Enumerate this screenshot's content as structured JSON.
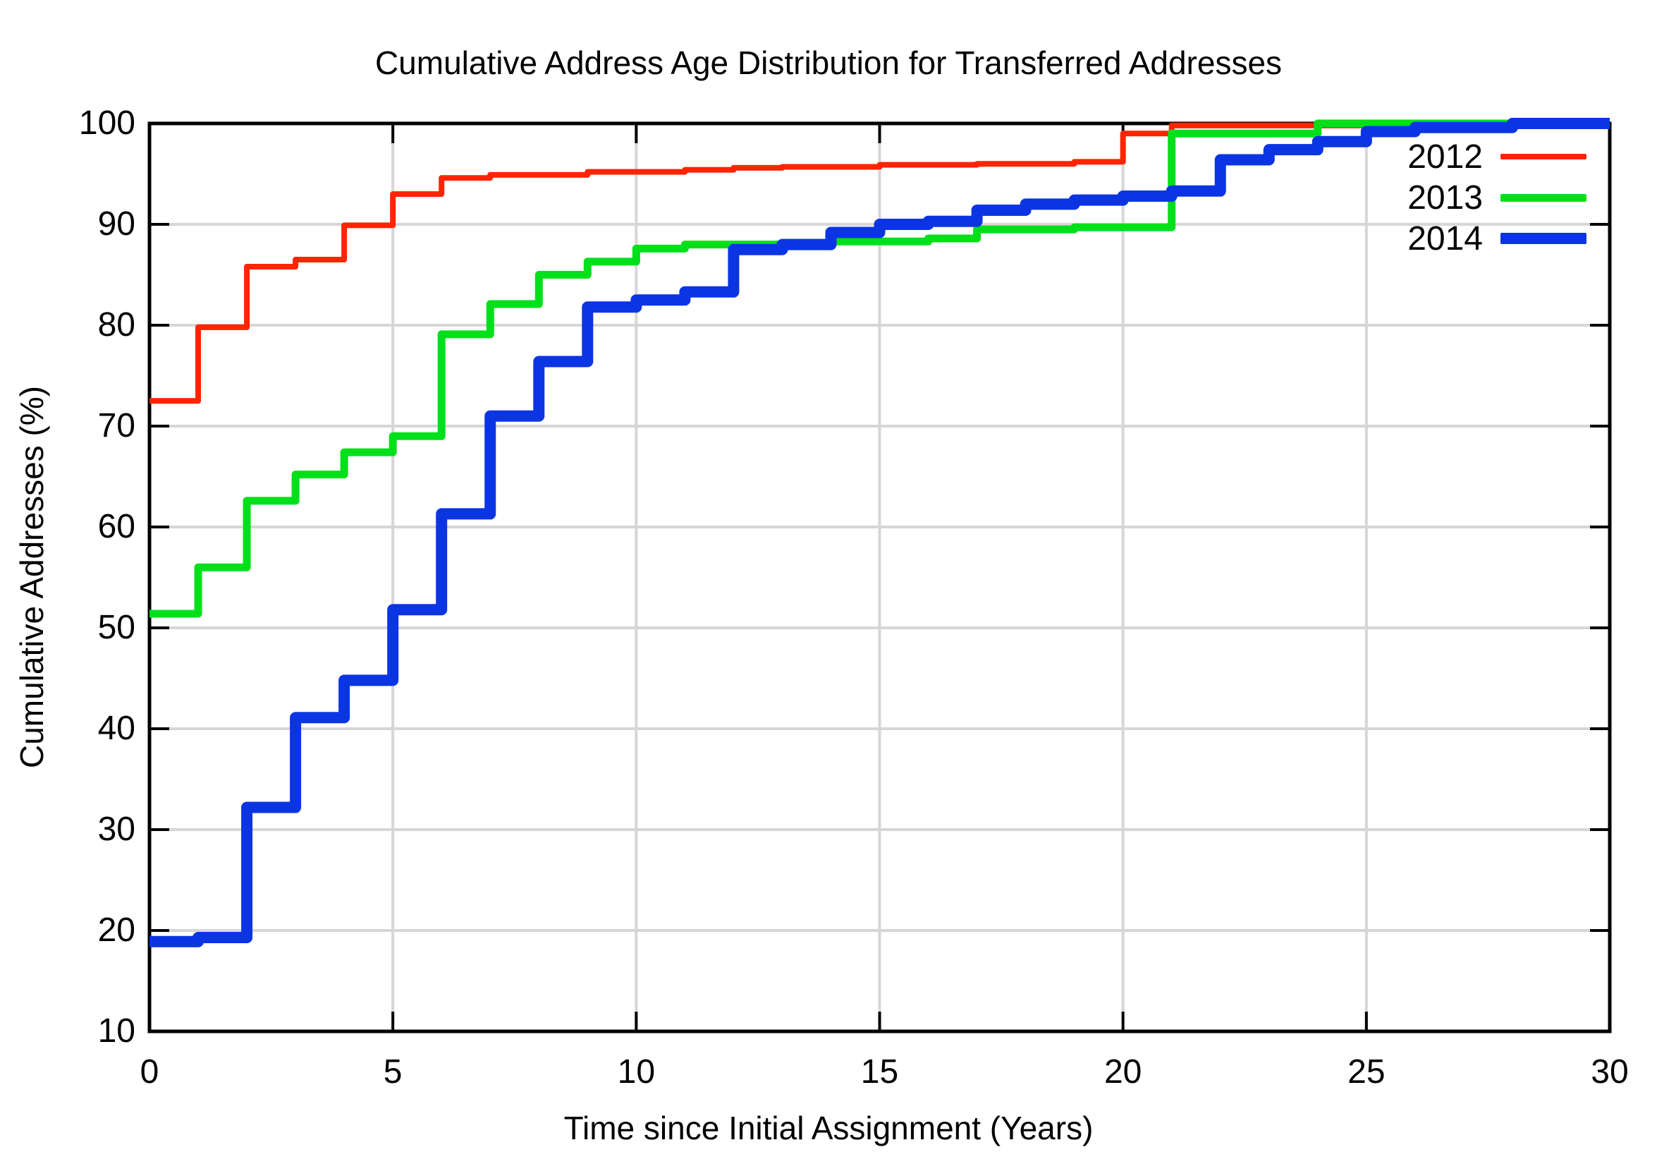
{
  "chart_data": {
    "type": "line",
    "subtype": "step-cdf",
    "title": "Cumulative Address Age Distribution for Transferred Addresses",
    "xlabel": "Time since Initial Assignment (Years)",
    "ylabel": "Cumulative Addresses (%)",
    "xlim": [
      0,
      30
    ],
    "ylim": [
      10,
      100
    ],
    "xticks": [
      0,
      5,
      10,
      15,
      20,
      25,
      30
    ],
    "yticks": [
      10,
      20,
      30,
      40,
      50,
      60,
      70,
      80,
      90,
      100
    ],
    "grid": true,
    "grid_color": "#d6d6d6",
    "axis_color": "#000000",
    "legend_position": "top-right-inside",
    "x_unit": "years",
    "x": [
      0,
      1,
      2,
      3,
      4,
      5,
      6,
      7,
      8,
      9,
      10,
      11,
      12,
      13,
      14,
      15,
      16,
      17,
      18,
      19,
      20,
      21,
      22,
      23,
      24,
      25,
      26,
      27,
      28,
      29,
      30
    ],
    "series": [
      {
        "name": "2012",
        "color": "#ff2400",
        "width": 8,
        "values": [
          72.5,
          79.8,
          85.8,
          86.5,
          89.9,
          93.0,
          94.6,
          94.9,
          94.9,
          95.2,
          95.2,
          95.4,
          95.6,
          95.7,
          95.7,
          95.9,
          95.9,
          96.0,
          96.0,
          96.2,
          99.0,
          99.8,
          99.8,
          99.8,
          99.8,
          99.8,
          99.8,
          100,
          100,
          100,
          100
        ]
      },
      {
        "name": "2013",
        "color": "#00e01a",
        "width": 11,
        "values": [
          51.4,
          56.0,
          62.6,
          65.2,
          67.4,
          69.0,
          79.1,
          82.1,
          85.0,
          86.3,
          87.6,
          88.0,
          88.0,
          88.0,
          88.3,
          88.3,
          88.6,
          89.5,
          89.5,
          89.7,
          89.7,
          99.0,
          99.0,
          99.0,
          100,
          100,
          100,
          100,
          100,
          100,
          100
        ]
      },
      {
        "name": "2014",
        "color": "#0b35e3",
        "width": 16,
        "values": [
          18.9,
          19.3,
          32.2,
          41.1,
          44.8,
          51.8,
          61.3,
          71.0,
          76.4,
          81.8,
          82.5,
          83.3,
          87.5,
          88.0,
          89.2,
          90.0,
          90.3,
          91.4,
          92.0,
          92.4,
          92.8,
          93.3,
          96.4,
          97.4,
          98.2,
          99.2,
          99.6,
          99.6,
          100,
          100,
          100
        ]
      }
    ]
  }
}
